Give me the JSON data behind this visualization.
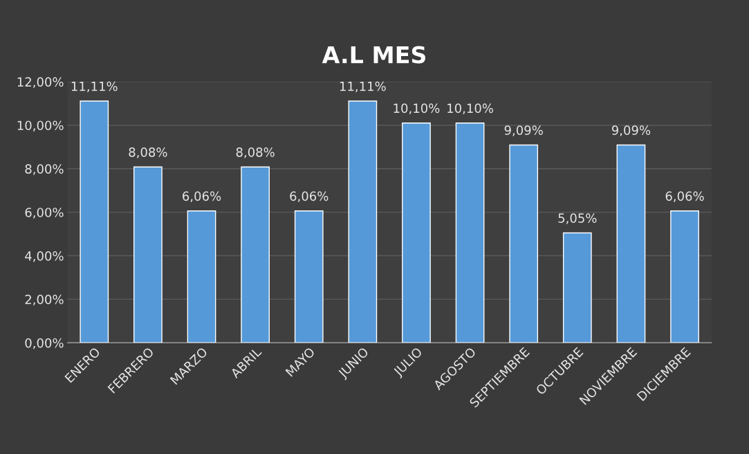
{
  "chart_data": {
    "type": "bar",
    "title": "A.L MES",
    "categories": [
      "ENERO",
      "FEBRERO",
      "MARZO",
      "ABRIL",
      "MAYO",
      "JUNIO",
      "JULIO",
      "AGOSTO",
      "SEPTIEMBRE",
      "OCTUBRE",
      "NOVIEMBRE",
      "DICIEMBRE"
    ],
    "values": [
      11.11,
      8.08,
      6.06,
      8.08,
      6.06,
      11.11,
      10.1,
      10.1,
      9.09,
      5.05,
      9.09,
      6.06
    ],
    "value_labels": [
      "11,11%",
      "8,08%",
      "6,06%",
      "8,08%",
      "6,06%",
      "11,11%",
      "10,10%",
      "10,10%",
      "9,09%",
      "5,05%",
      "9,09%",
      "6,06%"
    ],
    "color": "#5599d8",
    "ylim": [
      0,
      12
    ],
    "yticks": [
      {
        "value": 0,
        "label": "0,00%"
      },
      {
        "value": 2,
        "label": "2,00%"
      },
      {
        "value": 4,
        "label": "4,00%"
      },
      {
        "value": 6,
        "label": "6,00%"
      },
      {
        "value": 8,
        "label": "8,00%"
      },
      {
        "value": 10,
        "label": "10,00%"
      },
      {
        "value": 12,
        "label": "12,00%"
      }
    ],
    "grid": "y"
  }
}
